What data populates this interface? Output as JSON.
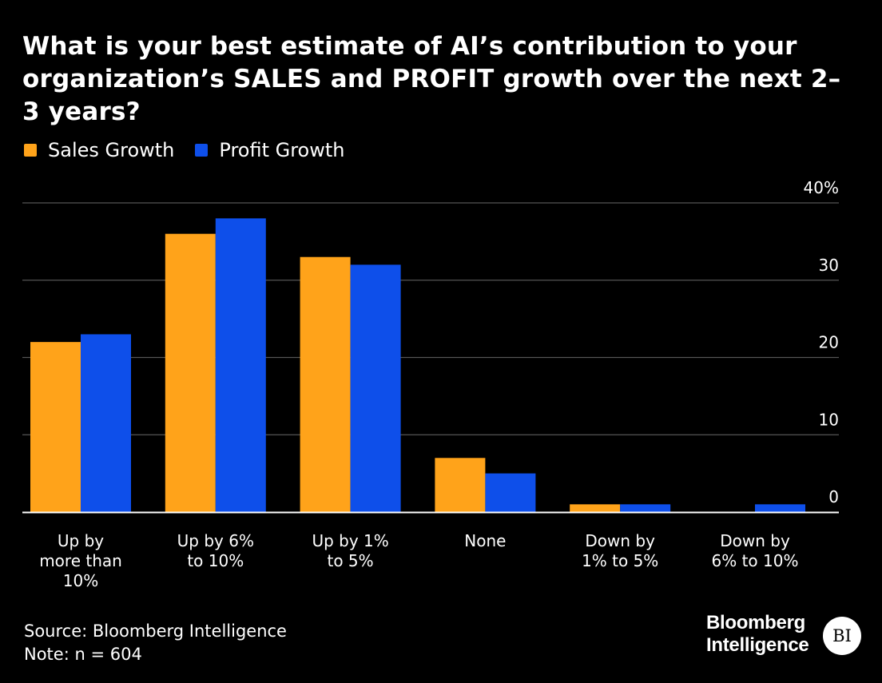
{
  "chart_data": {
    "type": "bar",
    "title": "What is your best estimate of AI’s contribution to your organization’s SALES and PROFIT growth over the next 2–3 years?",
    "categories": [
      [
        "Up by",
        "more than",
        "10%"
      ],
      [
        "Up by 6%",
        "to 10%"
      ],
      [
        "Up by 1%",
        "to 5%"
      ],
      [
        "None"
      ],
      [
        "Down by",
        "1% to 5%"
      ],
      [
        "Down by",
        "6% to 10%"
      ]
    ],
    "series": [
      {
        "name": "Sales Growth",
        "color": "#FFA31A",
        "values": [
          22,
          36,
          33,
          7,
          1,
          0
        ]
      },
      {
        "name": "Profit Growth",
        "color": "#0E4FEA",
        "values": [
          23,
          38,
          32,
          5,
          1,
          1
        ]
      }
    ],
    "ylim": [
      0,
      40
    ],
    "yticks": [
      {
        "value": 40,
        "label": "40%"
      },
      {
        "value": 30,
        "label": "30"
      },
      {
        "value": 20,
        "label": "20"
      },
      {
        "value": 10,
        "label": "10"
      },
      {
        "value": 0,
        "label": "0"
      }
    ],
    "xlabel": "",
    "ylabel": "",
    "grid": true,
    "legend": "top-left"
  },
  "footer": {
    "source": "Source: Bloomberg Intelligence",
    "note": "Note: n = 604"
  },
  "brand": {
    "line1": "Bloomberg",
    "line2": "Intelligence",
    "badge": "BI"
  },
  "colors": {
    "background": "#000000",
    "gridline": "#555555",
    "axis": "#ffffff"
  }
}
